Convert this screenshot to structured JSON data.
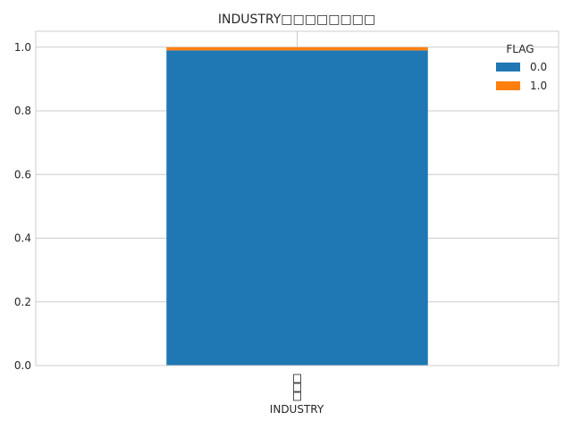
{
  "chart_data": {
    "type": "bar",
    "stacked": true,
    "title": "INDUSTRY□□□□□□□□",
    "xlabel": "INDUSTRY",
    "ylabel": "",
    "categories": [
      "□□□"
    ],
    "series": [
      {
        "name": "0.0",
        "values": [
          0.99
        ]
      },
      {
        "name": "1.0",
        "values": [
          0.01
        ]
      }
    ],
    "ylim": [
      0,
      1.05
    ],
    "yticks": [
      "0.0",
      "0.2",
      "0.4",
      "0.6",
      "0.8",
      "1.0"
    ],
    "legend": {
      "title": "FLAG",
      "placement": "top-right"
    },
    "grid": true,
    "colors": {
      "0.0": "#1f77b4",
      "1.0": "#ff7f0e"
    }
  }
}
